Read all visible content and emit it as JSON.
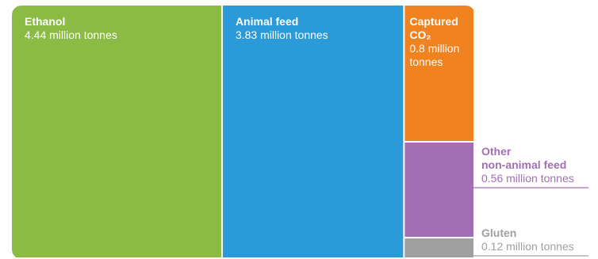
{
  "chart_data": {
    "type": "treemap",
    "unit": "million tonnes",
    "items": [
      {
        "name": "Ethanol",
        "value": 4.44,
        "value_label": "4.44 million tonnes",
        "color": "#8cbb45"
      },
      {
        "name": "Animal feed",
        "value": 3.83,
        "value_label": "3.83 million tonnes",
        "color": "#2a9ad8"
      },
      {
        "name": "Captured CO₂",
        "name_lines": [
          "Captured",
          "CO₂"
        ],
        "value": 0.8,
        "value_label": "0.8 million tonnes",
        "value_lines": [
          "0.8 million",
          "tonnes"
        ],
        "color": "#f08220"
      },
      {
        "name": "Other non-animal feed",
        "name_lines": [
          "Other",
          "non-animal feed"
        ],
        "value": 0.56,
        "value_label": "0.56 million tonnes",
        "color": "#a070b3"
      },
      {
        "name": "Gluten",
        "value": 0.12,
        "value_label": "0.12 million tonnes",
        "color": "#a0a0a0"
      }
    ]
  }
}
